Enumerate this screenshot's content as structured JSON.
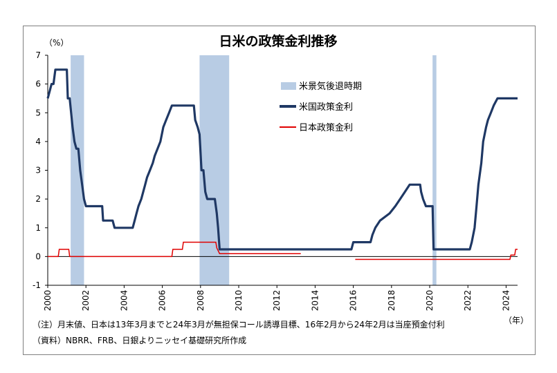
{
  "chart_data": {
    "type": "line",
    "title": "日米の政策金利推移",
    "y_unit": "（%）",
    "x_unit": "（年）",
    "ylim": [
      -1,
      7
    ],
    "xlim": [
      2000,
      2024.6
    ],
    "y_ticks": [
      -1,
      0,
      1,
      2,
      3,
      4,
      5,
      6,
      7
    ],
    "x_ticks": [
      2000,
      2002,
      2004,
      2006,
      2008,
      2010,
      2012,
      2014,
      2016,
      2018,
      2020,
      2022,
      2024
    ],
    "legend_position": "top-center",
    "recessions": {
      "name": "米景気後退時期",
      "color": "#b8cce4",
      "periods": [
        [
          2001.2,
          2001.9
        ],
        [
          2007.95,
          2009.5
        ],
        [
          2020.15,
          2020.35
        ]
      ]
    },
    "series": [
      {
        "name": "米国政策金利",
        "color": "#1f3864",
        "points": [
          [
            2000.0,
            5.5
          ],
          [
            2000.1,
            5.75
          ],
          [
            2000.2,
            6.0
          ],
          [
            2000.3,
            6.0
          ],
          [
            2000.4,
            6.5
          ],
          [
            2001.0,
            6.5
          ],
          [
            2001.05,
            5.5
          ],
          [
            2001.15,
            5.5
          ],
          [
            2001.3,
            4.5
          ],
          [
            2001.4,
            4.0
          ],
          [
            2001.5,
            3.75
          ],
          [
            2001.6,
            3.75
          ],
          [
            2001.7,
            3.0
          ],
          [
            2001.8,
            2.5
          ],
          [
            2001.9,
            2.0
          ],
          [
            2002.0,
            1.75
          ],
          [
            2002.85,
            1.75
          ],
          [
            2002.9,
            1.25
          ],
          [
            2003.4,
            1.25
          ],
          [
            2003.5,
            1.0
          ],
          [
            2004.45,
            1.0
          ],
          [
            2004.55,
            1.25
          ],
          [
            2004.65,
            1.5
          ],
          [
            2004.75,
            1.75
          ],
          [
            2004.9,
            2.0
          ],
          [
            2005.0,
            2.25
          ],
          [
            2005.1,
            2.5
          ],
          [
            2005.2,
            2.75
          ],
          [
            2005.35,
            3.0
          ],
          [
            2005.5,
            3.25
          ],
          [
            2005.6,
            3.5
          ],
          [
            2005.75,
            3.75
          ],
          [
            2005.9,
            4.0
          ],
          [
            2006.05,
            4.5
          ],
          [
            2006.2,
            4.75
          ],
          [
            2006.35,
            5.0
          ],
          [
            2006.5,
            5.25
          ],
          [
            2007.65,
            5.25
          ],
          [
            2007.72,
            4.75
          ],
          [
            2007.85,
            4.5
          ],
          [
            2007.95,
            4.25
          ],
          [
            2008.05,
            3.0
          ],
          [
            2008.15,
            3.0
          ],
          [
            2008.25,
            2.25
          ],
          [
            2008.35,
            2.0
          ],
          [
            2008.75,
            2.0
          ],
          [
            2008.85,
            1.5
          ],
          [
            2008.92,
            1.0
          ],
          [
            2009.0,
            0.25
          ],
          [
            2015.9,
            0.25
          ],
          [
            2016.0,
            0.5
          ],
          [
            2016.9,
            0.5
          ],
          [
            2017.0,
            0.75
          ],
          [
            2017.15,
            1.0
          ],
          [
            2017.4,
            1.25
          ],
          [
            2017.9,
            1.5
          ],
          [
            2018.2,
            1.75
          ],
          [
            2018.45,
            2.0
          ],
          [
            2018.7,
            2.25
          ],
          [
            2018.95,
            2.5
          ],
          [
            2019.5,
            2.5
          ],
          [
            2019.55,
            2.25
          ],
          [
            2019.65,
            2.0
          ],
          [
            2019.8,
            1.75
          ],
          [
            2020.15,
            1.75
          ],
          [
            2020.2,
            0.25
          ],
          [
            2022.1,
            0.25
          ],
          [
            2022.2,
            0.5
          ],
          [
            2022.35,
            1.0
          ],
          [
            2022.45,
            1.75
          ],
          [
            2022.55,
            2.5
          ],
          [
            2022.7,
            3.25
          ],
          [
            2022.8,
            4.0
          ],
          [
            2022.95,
            4.5
          ],
          [
            2023.05,
            4.75
          ],
          [
            2023.2,
            5.0
          ],
          [
            2023.35,
            5.25
          ],
          [
            2023.55,
            5.5
          ],
          [
            2024.6,
            5.5
          ]
        ]
      },
      {
        "name": "日本政策金利",
        "color": "#e00000",
        "segments": [
          [
            [
              2000.0,
              0.0
            ],
            [
              2000.55,
              0.0
            ],
            [
              2000.6,
              0.25
            ],
            [
              2001.1,
              0.25
            ],
            [
              2001.15,
              0.0
            ],
            [
              2006.5,
              0.0
            ],
            [
              2006.55,
              0.25
            ],
            [
              2007.05,
              0.25
            ],
            [
              2007.1,
              0.5
            ],
            [
              2008.8,
              0.5
            ],
            [
              2008.85,
              0.3
            ],
            [
              2009.0,
              0.1
            ],
            [
              2013.25,
              0.1
            ]
          ],
          [
            [
              2016.1,
              -0.1
            ],
            [
              2024.2,
              -0.1
            ],
            [
              2024.25,
              0.05
            ],
            [
              2024.45,
              0.05
            ],
            [
              2024.5,
              0.25
            ],
            [
              2024.6,
              0.25
            ]
          ]
        ]
      }
    ]
  },
  "notes": [
    "（注）月末値、日本は13年3月までと24年3月が無担保コール誘導目標、16年2月から24年2月は当座預金付利",
    "（資料）NBRR、FRB、日銀よりニッセイ基礎研究所作成"
  ]
}
